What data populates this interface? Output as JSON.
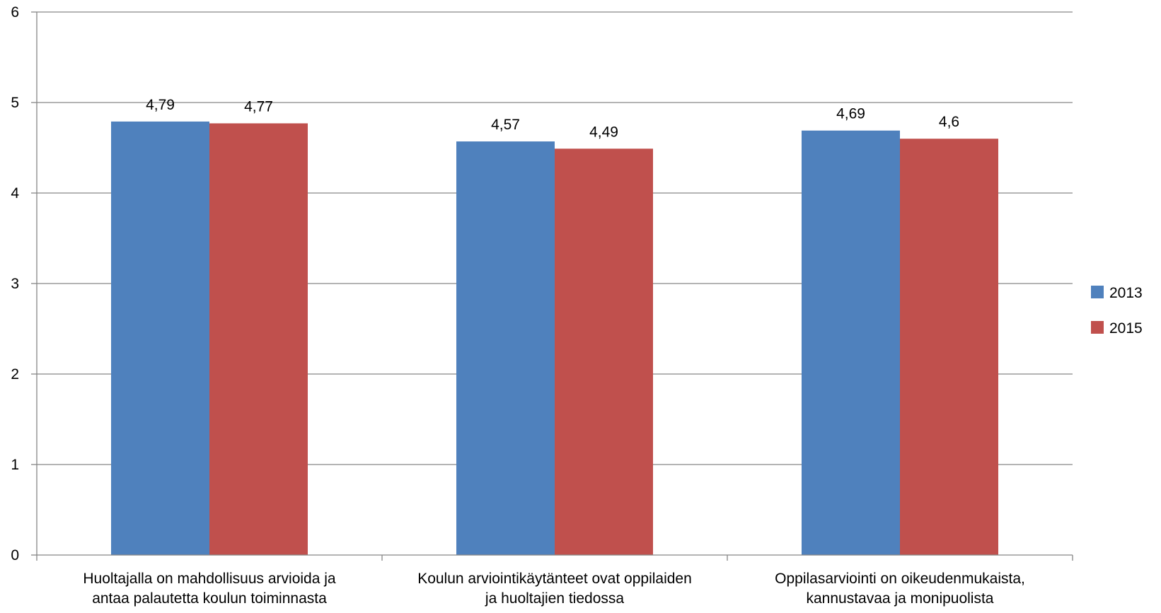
{
  "chart_data": {
    "type": "bar",
    "categories": [
      [
        "Huoltajalla on mahdollisuus arvioida ja",
        "antaa palautetta koulun toiminnasta"
      ],
      [
        "Koulun arviointikäytänteet ovat oppilaiden",
        "ja huoltajien tiedossa"
      ],
      [
        "Oppilasarviointi on oikeudenmukaista,",
        "kannustavaa ja monipuolista"
      ]
    ],
    "series": [
      {
        "name": "2013",
        "color": "#4F81BD",
        "values": [
          4.79,
          4.57,
          4.69
        ],
        "labels": [
          "4,79",
          "4,57",
          "4,69"
        ]
      },
      {
        "name": "2015",
        "color": "#C0504D",
        "values": [
          4.77,
          4.49,
          4.6
        ],
        "labels": [
          "4,77",
          "4,49",
          "4,6"
        ]
      }
    ],
    "ylim": [
      0,
      6
    ],
    "yticks": [
      "0",
      "1",
      "2",
      "3",
      "4",
      "5",
      "6"
    ],
    "grid": true,
    "legend": "right",
    "title": "",
    "xlabel": "",
    "ylabel": ""
  }
}
